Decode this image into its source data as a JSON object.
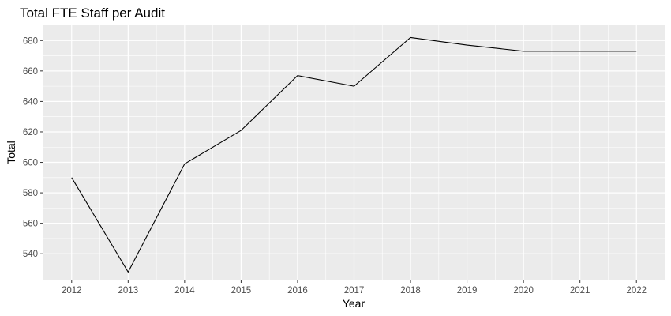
{
  "chart_data": {
    "type": "line",
    "title": "Total FTE Staff per Audit",
    "xlabel": "Year",
    "ylabel": "Total",
    "x": [
      2012,
      2013,
      2014,
      2015,
      2016,
      2017,
      2018,
      2019,
      2020,
      2021,
      2022
    ],
    "series": [
      {
        "values": [
          590,
          528,
          599,
          621,
          657,
          650,
          682,
          677,
          673,
          673,
          673
        ]
      }
    ],
    "xlim": [
      2011.5,
      2022.5
    ],
    "ylim": [
      523,
      690
    ],
    "y_ticks": [
      540,
      560,
      580,
      600,
      620,
      640,
      660,
      680
    ],
    "grid": true,
    "legend": "none",
    "colors": {
      "panel": "#EBEBEB",
      "grid": "#FFFFFF",
      "line": "#000000"
    }
  }
}
